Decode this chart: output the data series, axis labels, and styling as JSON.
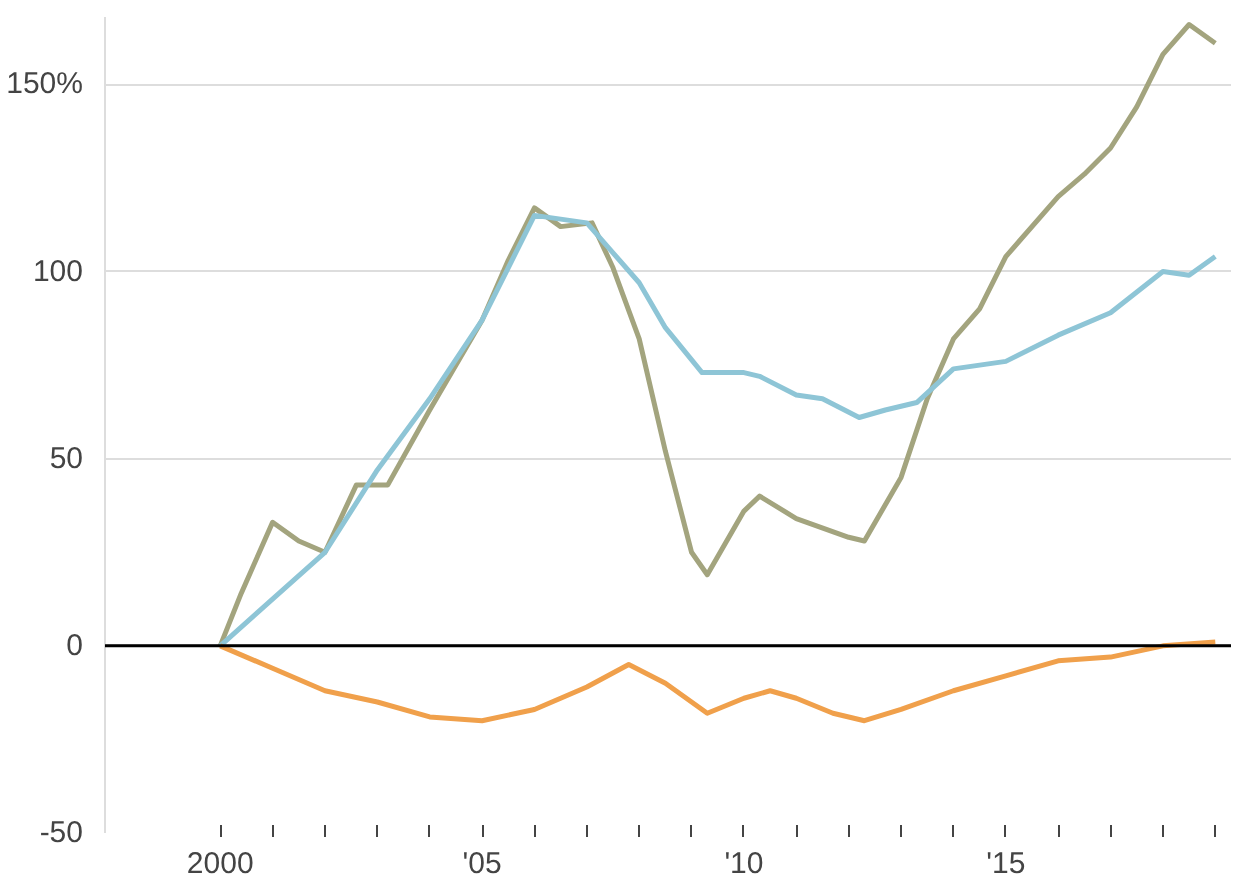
{
  "chart_data": {
    "type": "line",
    "xlim": [
      1997.8,
      2019.3
    ],
    "ylim": [
      -50,
      168
    ],
    "xticks": [
      {
        "value": 2000,
        "label": "2000"
      },
      {
        "value": 2001,
        "label": null
      },
      {
        "value": 2002,
        "label": null
      },
      {
        "value": 2003,
        "label": null
      },
      {
        "value": 2004,
        "label": null
      },
      {
        "value": 2005,
        "label": "'05"
      },
      {
        "value": 2006,
        "label": null
      },
      {
        "value": 2007,
        "label": null
      },
      {
        "value": 2008,
        "label": null
      },
      {
        "value": 2009,
        "label": null
      },
      {
        "value": 2010,
        "label": "'10"
      },
      {
        "value": 2011,
        "label": null
      },
      {
        "value": 2012,
        "label": null
      },
      {
        "value": 2013,
        "label": null
      },
      {
        "value": 2014,
        "label": null
      },
      {
        "value": 2015,
        "label": "'15"
      },
      {
        "value": 2016,
        "label": null
      },
      {
        "value": 2017,
        "label": null
      },
      {
        "value": 2018,
        "label": null
      },
      {
        "value": 2019,
        "label": null
      }
    ],
    "yticks": [
      {
        "value": -50,
        "label": "-50"
      },
      0,
      50,
      100,
      {
        "value": 150,
        "label": "150%"
      }
    ],
    "grid": "y",
    "ref_lines": [
      {
        "axis": "y",
        "value": 0,
        "color": "#000000"
      }
    ],
    "series": [
      {
        "color": "#a3a47e",
        "x": [
          2000,
          2000.4,
          2001,
          2001.5,
          2002,
          2002.6,
          2003.2,
          2004,
          2005,
          2005.5,
          2006,
          2006.5,
          2007.1,
          2007.5,
          2008,
          2008.5,
          2009,
          2009.3,
          2010,
          2010.3,
          2011,
          2012,
          2012.3,
          2013,
          2013.5,
          2014,
          2014.5,
          2015,
          2016,
          2016.5,
          2017,
          2017.5,
          2018,
          2018.5,
          2019
        ],
        "values": [
          0,
          14,
          33,
          28,
          25,
          43,
          43,
          63,
          87,
          103,
          117,
          112,
          113,
          101,
          82,
          52,
          25,
          19,
          36,
          40,
          34,
          29,
          28,
          45,
          66,
          82,
          90,
          104,
          120,
          126,
          133,
          144,
          158,
          166,
          161
        ]
      },
      {
        "color": "#8ec5d6",
        "x": [
          2000,
          2002,
          2003,
          2004,
          2005,
          2006,
          2007,
          2007.5,
          2008,
          2008.5,
          2009.2,
          2010,
          2010.3,
          2011,
          2011.5,
          2012.2,
          2012.7,
          2013.3,
          2014,
          2015,
          2016,
          2017,
          2018,
          2018.5,
          2019
        ],
        "values": [
          0,
          25,
          47,
          66,
          87,
          115,
          113,
          105,
          97,
          85,
          73,
          73,
          72,
          67,
          66,
          61,
          63,
          65,
          74,
          76,
          83,
          89,
          100,
          99,
          104
        ]
      },
      {
        "color": "#f0a04b",
        "x": [
          2000,
          2001,
          2002,
          2003,
          2004,
          2005,
          2006,
          2007,
          2007.8,
          2008.5,
          2009.3,
          2010,
          2010.5,
          2011,
          2011.7,
          2012.3,
          2013,
          2014,
          2015,
          2016,
          2017,
          2018,
          2019
        ],
        "values": [
          0,
          -6,
          -12,
          -15,
          -19,
          -20,
          -17,
          -11,
          -5,
          -10,
          -18,
          -14,
          -12,
          -14,
          -18,
          -20,
          -17,
          -12,
          -8,
          -4,
          -3,
          0,
          1
        ]
      }
    ]
  }
}
